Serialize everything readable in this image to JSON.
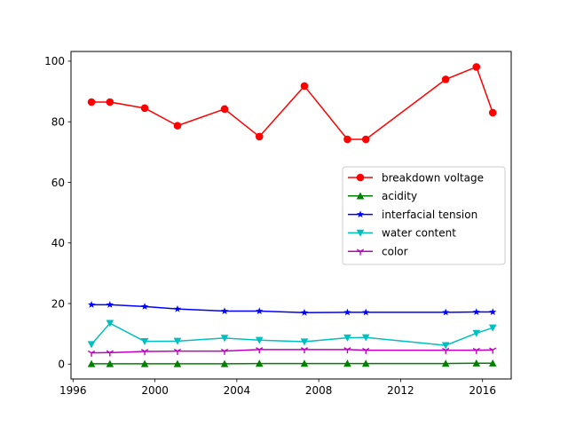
{
  "chart_data": {
    "type": "line",
    "title": "",
    "xlabel": "",
    "ylabel": "",
    "xlim": [
      1995.9,
      2017.4
    ],
    "ylim": [
      -4.9,
      103.2
    ],
    "xticks": [
      1996,
      2000,
      2004,
      2008,
      2012,
      2016
    ],
    "yticks": [
      0,
      20,
      40,
      60,
      80,
      100
    ],
    "x": [
      1996.9,
      1997.8,
      1999.5,
      2001.1,
      2003.4,
      2005.1,
      2007.3,
      2009.4,
      2010.3,
      2014.2,
      2015.7,
      2016.5
    ],
    "grid": false,
    "legend_position": "center-right",
    "series": [
      {
        "name": "breakdown voltage",
        "color": "#ff0000",
        "marker": "circle",
        "values": [
          86.5,
          86.5,
          84.5,
          78.7,
          84.2,
          75.1,
          91.8,
          74.2,
          74.2,
          94.0,
          98.1,
          83.0
        ]
      },
      {
        "name": "acidity",
        "color": "#008000",
        "marker": "triangle-up",
        "values": [
          0.1,
          0.1,
          0.1,
          0.1,
          0.1,
          0.2,
          0.2,
          0.2,
          0.2,
          0.2,
          0.3,
          0.3
        ]
      },
      {
        "name": "interfacial tension",
        "color": "#0000ff",
        "marker": "star",
        "values": [
          19.6,
          19.6,
          19.0,
          18.2,
          17.5,
          17.5,
          17.0,
          17.1,
          17.1,
          17.1,
          17.2,
          17.2
        ]
      },
      {
        "name": "water content",
        "color": "#00bfbf",
        "marker": "triangle-down",
        "values": [
          6.5,
          13.5,
          7.5,
          7.6,
          8.6,
          7.9,
          7.4,
          8.7,
          8.8,
          6.2,
          10.2,
          12.0
        ]
      },
      {
        "name": "color",
        "color": "#bf00bf",
        "marker": "tri-down",
        "values": [
          3.7,
          3.8,
          4.2,
          4.3,
          4.3,
          4.8,
          4.8,
          4.8,
          4.6,
          4.6,
          4.6,
          4.7
        ]
      }
    ]
  }
}
